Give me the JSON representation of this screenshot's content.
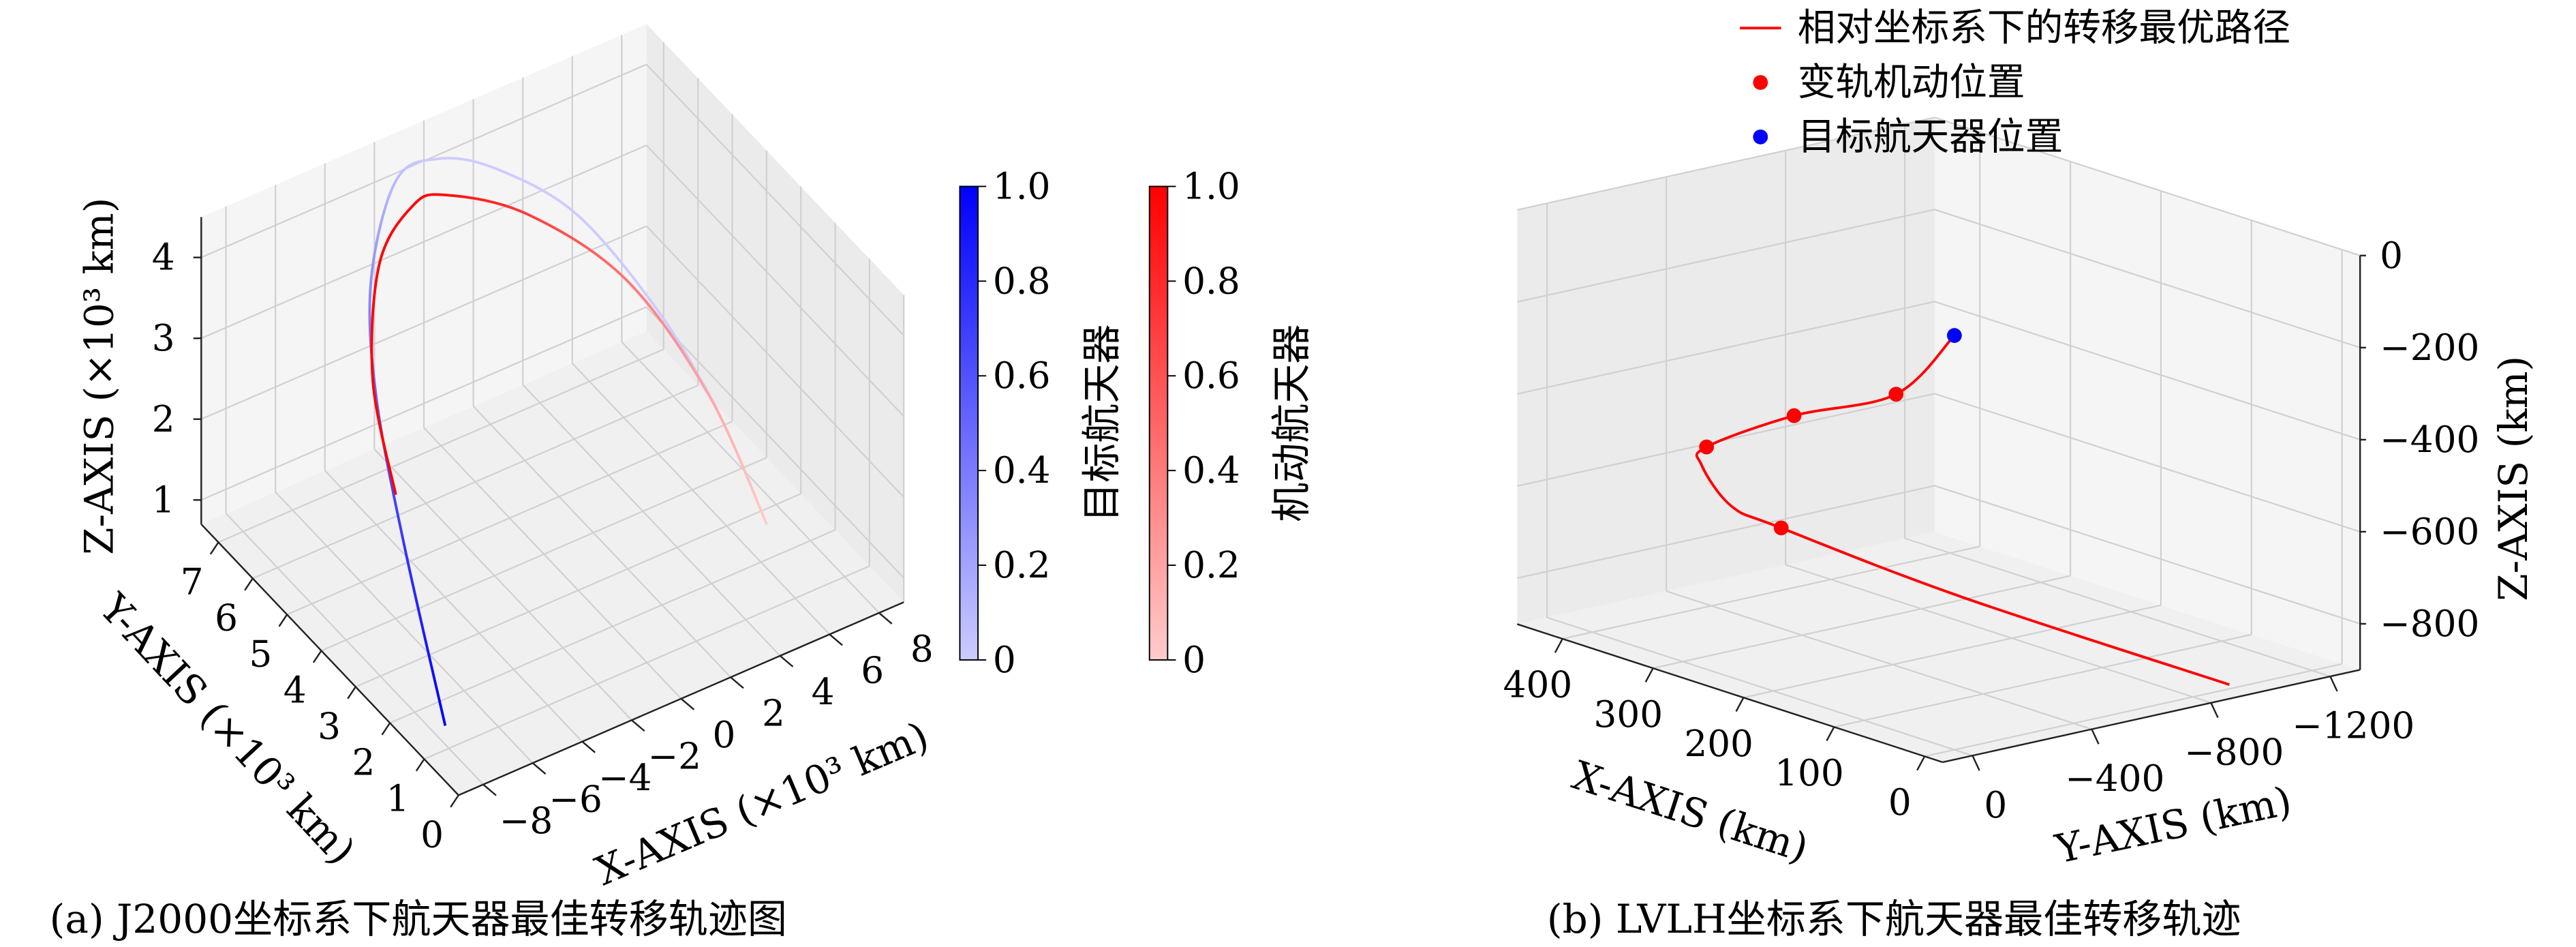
{
  "chart_data": [
    {
      "type": "line3d",
      "caption": "(a) J2000坐标系下航天器最佳转移轨迹图",
      "xlabel": "X-AXIS (×10³ km)",
      "ylabel": "Y-AXIS (×10³ km)",
      "zlabel": "Z-AXIS (×10³ km)",
      "xlim": [
        -9,
        9
      ],
      "ylim": [
        0,
        7.5
      ],
      "zlim": [
        0.7,
        4.5
      ],
      "xticks": [
        {
          "value": -8,
          "label": "−8"
        },
        {
          "value": -6,
          "label": "−6"
        },
        {
          "value": -4,
          "label": "−4"
        },
        {
          "value": -2,
          "label": "−2"
        },
        0,
        2,
        4,
        6,
        8
      ],
      "yticks": [
        0,
        1,
        2,
        3,
        4,
        5,
        6,
        7
      ],
      "zticks": [
        1,
        2,
        3,
        4
      ],
      "grid": true,
      "colorbar": true,
      "clim": [
        0,
        1
      ],
      "cticks": [
        0,
        0.2,
        0.4,
        0.6,
        0.8,
        {
          "value": 1,
          "label": "1.0"
        }
      ],
      "series": [
        {
          "name": "目标航天器",
          "color": "#0000ff",
          "mode": "line",
          "x": [
            -8.15,
            -7.04,
            -5.4,
            -3.8,
            -1.97,
            -0.16,
            1.9,
            4.4,
            6.35,
            7.7
          ],
          "y": [
            1,
            3,
            5,
            6.3,
            6.9,
            7,
            6.8,
            6.2,
            5.2,
            4.5
          ],
          "z": [
            1.0,
            2.2,
            2.93,
            3.56,
            4.28,
            4.27,
            3.97,
            3.33,
            2.3,
            1.25
          ]
        },
        {
          "name": "机动航天器",
          "color": "#ff0000",
          "mode": "line",
          "x": [
            -5.99,
            -4.84,
            -3.19,
            -1.3,
            0.17,
            2.95,
            5.84,
            7.79,
            6.93
          ],
          "y": [
            4,
            5.5,
            6.5,
            6.9,
            7,
            6.6,
            5.8,
            4.8,
            2.5
          ],
          "z": [
            2.23,
            2.83,
            3.59,
            3.88,
            3.78,
            3.35,
            2.51,
            1.27,
            0.82
          ]
        }
      ]
    },
    {
      "type": "line3d",
      "caption": "(b) LVLH坐标系下航天器最佳转移轨迹",
      "xlabel": "X-AXIS (km)",
      "ylabel": "Y-AXIS (km)",
      "zlabel": "Z-AXIS (km)",
      "xlim": [
        -20,
        450
      ],
      "ylim": [
        -1300,
        100
      ],
      "zlim": [
        -900,
        0
      ],
      "xticks": [
        0,
        100,
        200,
        300,
        400
      ],
      "yticks": [
        0,
        {
          "value": -400,
          "label": "−400"
        },
        {
          "value": -800,
          "label": "−800"
        },
        {
          "value": -1200,
          "label": "−1200"
        }
      ],
      "zticks": [
        0,
        {
          "value": -200,
          "label": "−200"
        },
        {
          "value": -400,
          "label": "−400"
        },
        {
          "value": -600,
          "label": "−600"
        },
        {
          "value": -800,
          "label": "−800"
        }
      ],
      "grid": true,
      "legend": "upper right",
      "series": [
        {
          "name": "相对坐标系下的转移最优路径",
          "color": "#ff0000",
          "mode": "line",
          "x": [
            0,
            47,
            161,
            258,
            298,
            275,
            247,
            137,
            -10
          ],
          "y": [
            0,
            53,
            49,
            48,
            -57,
            -89,
            -169,
            -444,
            -892
          ],
          "z": [
            0,
            -150,
            -270,
            -400,
            -480,
            -560,
            -600,
            -720,
            -880
          ]
        },
        {
          "name": "变轨机动位置",
          "color": "#ff0000",
          "mode": "markers",
          "x": [
            47,
            161,
            258,
            247
          ],
          "y": [
            53,
            49,
            48,
            -169
          ],
          "z": [
            -150,
            -270,
            -400,
            -600
          ]
        },
        {
          "name": "目标航天器位置",
          "color": "#0000ff",
          "mode": "markers",
          "x": [
            0
          ],
          "y": [
            0
          ],
          "z": [
            0
          ]
        }
      ]
    }
  ]
}
